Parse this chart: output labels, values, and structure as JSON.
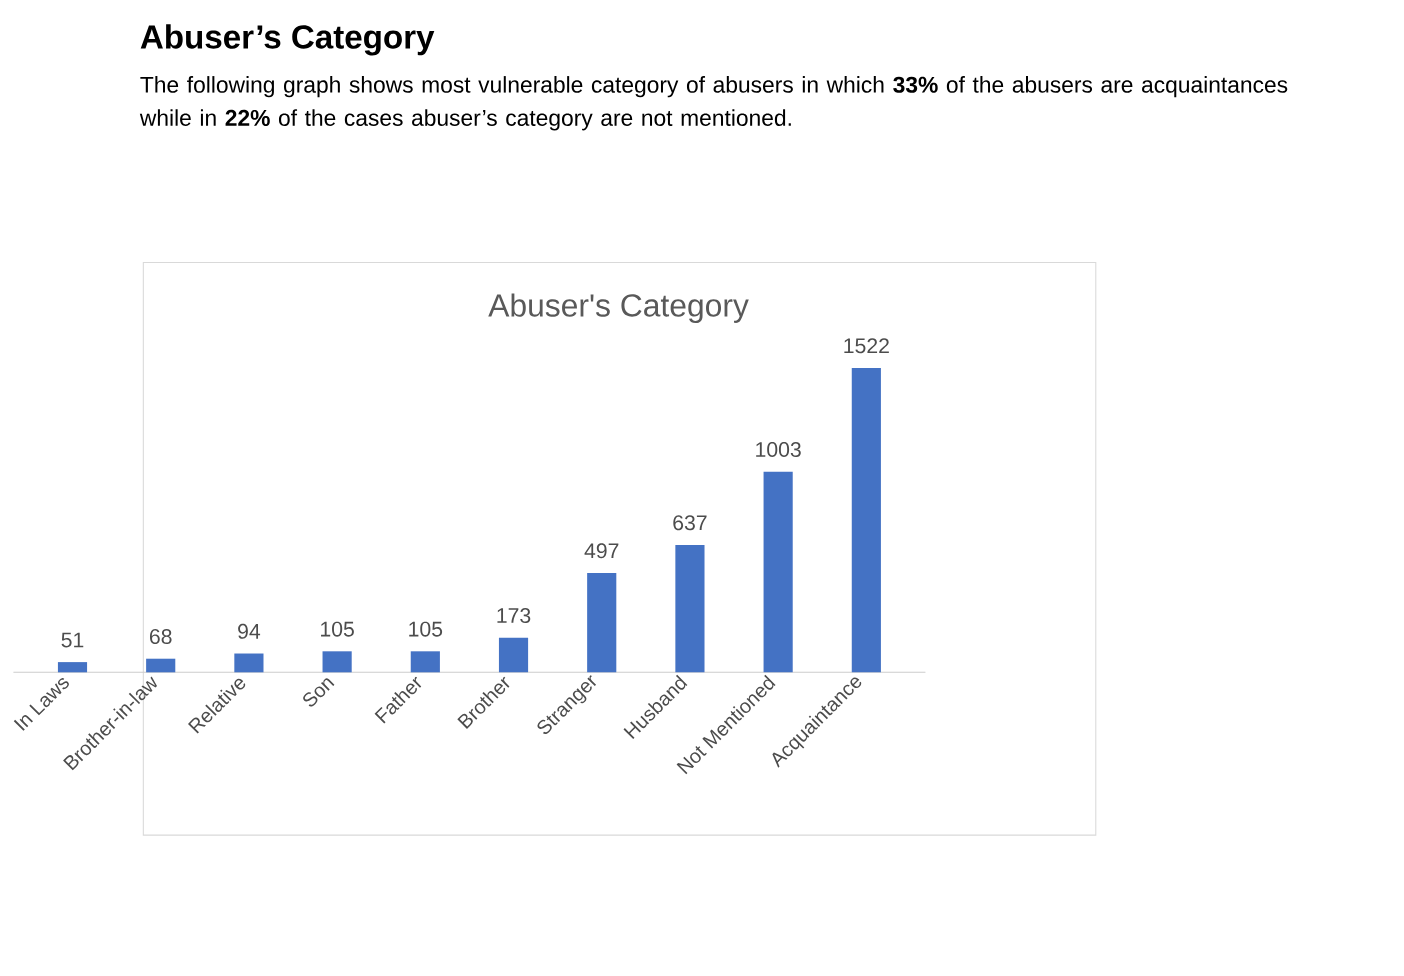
{
  "chart_data": {
    "type": "bar",
    "title": "Abuser’s Category",
    "subtitle": "The following graph shows most vulnerable category of abusers in which **33%** of the abusers are acquaintances while in **22%** of the cases abuser’s category are not mentioned.",
    "annotations": [
      "Abuser's Category"
    ],
    "categories": [
      "In Laws",
      "Brother-in-law",
      "Relative",
      "Son",
      "Father",
      "Brother",
      "Stranger",
      "Husband",
      "Not Mentioned",
      "Acquaintance"
    ],
    "values": [
      51,
      68,
      94,
      105,
      105,
      173,
      497,
      637,
      1003,
      1522
    ],
    "color": "#4472c4",
    "data_labels": true
  }
}
